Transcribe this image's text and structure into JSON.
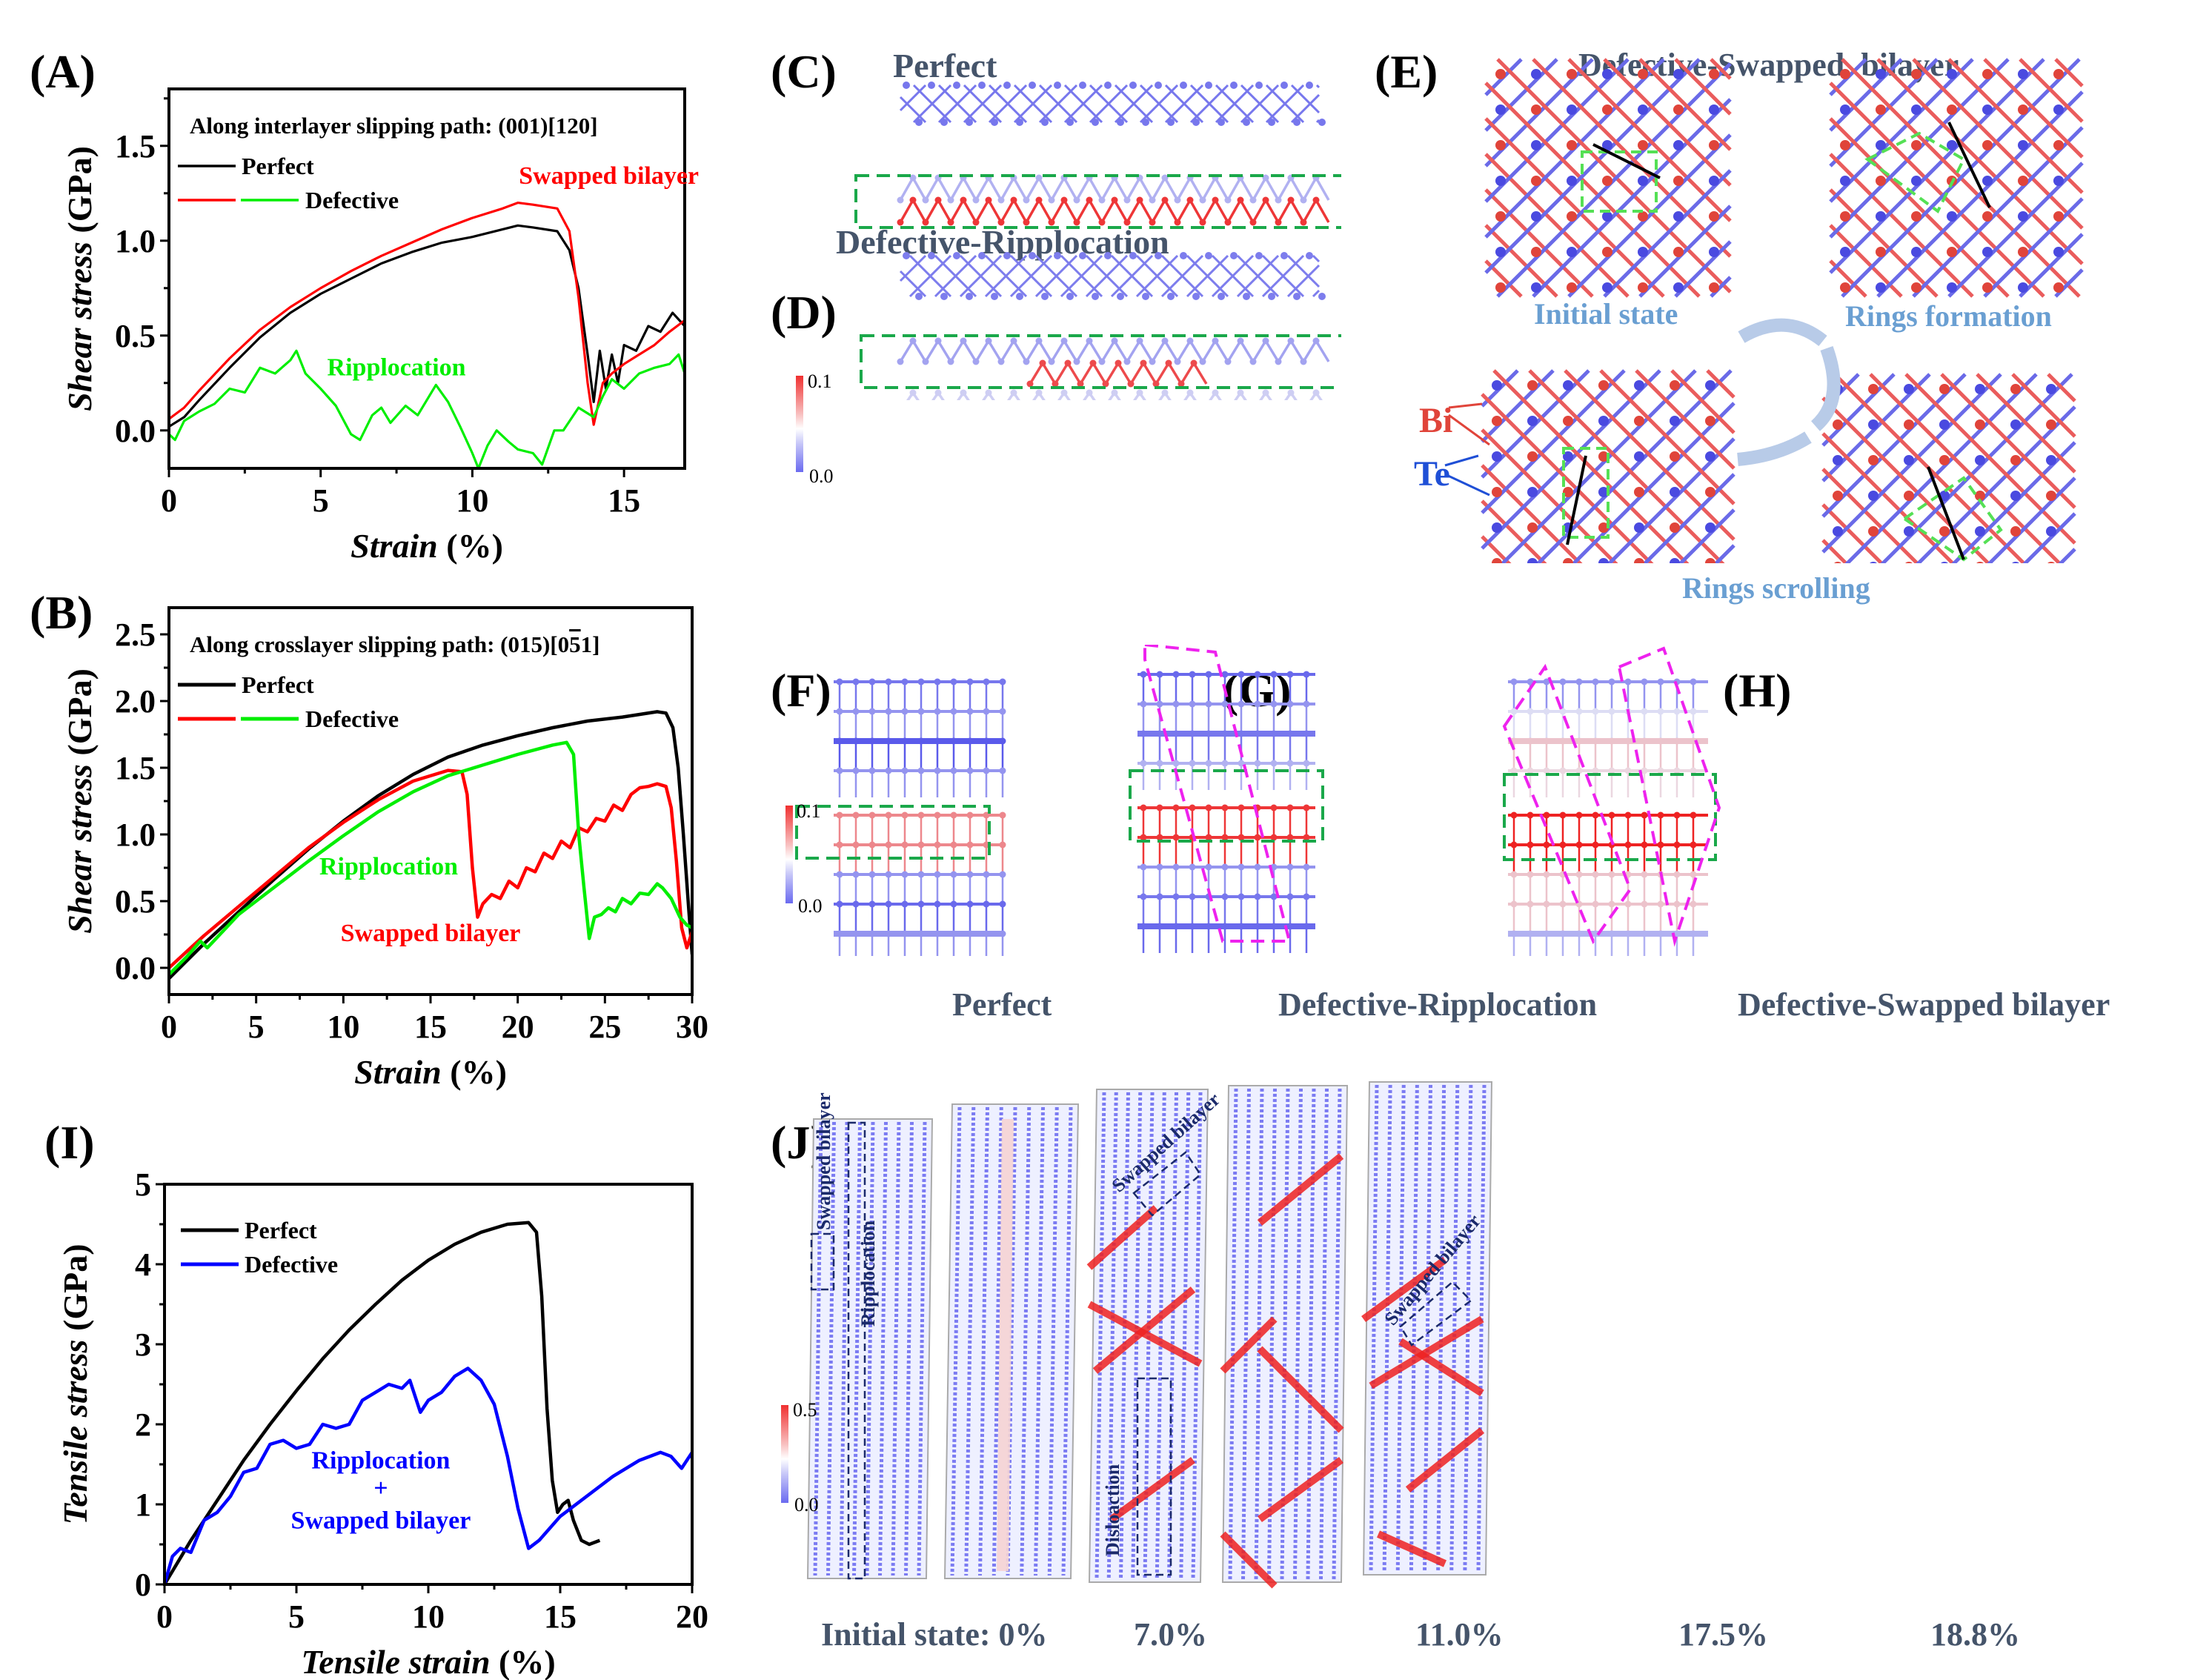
{
  "panel_labels": {
    "A": "(A)",
    "B": "(B)",
    "C": "(C)",
    "D": "(D)",
    "E": "(E)",
    "F": "(F)",
    "G": "(G)",
    "H": "(H)",
    "I": "(I)",
    "J": "(J)"
  },
  "chart_data": [
    {
      "id": "A",
      "type": "line",
      "title": "Along interlayer slipping path: (001)[120]",
      "xlabel": "Strain",
      "xlabel_unit": " (%)",
      "ylabel": "Shear stress",
      "ylabel_unit": " (GPa)",
      "xlim": [
        0,
        17
      ],
      "ylim": [
        -0.2,
        1.8
      ],
      "xticks": [
        0,
        5,
        10,
        15
      ],
      "yticks": [
        0.0,
        0.5,
        1.0,
        1.5
      ],
      "ytick_format": 1,
      "grid": false,
      "legend": {
        "position": "top-left",
        "entries": [
          {
            "label": "Perfect",
            "colors": [
              "#000000"
            ]
          },
          {
            "label": "Defective",
            "colors": [
              "#ff0000",
              "#00ee00"
            ]
          }
        ]
      },
      "annotations": [
        {
          "text": "Swapped bilayer",
          "color": "#ff0000",
          "x": 14.5,
          "y": 1.3
        },
        {
          "text": "Ripplocation",
          "color": "#00ee00",
          "x": 7.5,
          "y": 0.29
        }
      ],
      "series": [
        {
          "name": "Perfect",
          "color": "#000000",
          "x": [
            0,
            0.5,
            1,
            2,
            3,
            4,
            5,
            6,
            7,
            8,
            9,
            10,
            11,
            11.5,
            12,
            12.8,
            13.2,
            13.5,
            13.8,
            14.0,
            14.2,
            14.4,
            14.6,
            14.8,
            15.0,
            15.4,
            15.8,
            16.2,
            16.6,
            17.0
          ],
          "y": [
            0.02,
            0.07,
            0.16,
            0.33,
            0.49,
            0.62,
            0.72,
            0.8,
            0.88,
            0.94,
            0.99,
            1.02,
            1.06,
            1.08,
            1.07,
            1.05,
            0.95,
            0.75,
            0.4,
            0.15,
            0.42,
            0.22,
            0.4,
            0.25,
            0.45,
            0.42,
            0.55,
            0.52,
            0.62,
            0.55
          ]
        },
        {
          "name": "Defective (Swapped bilayer)",
          "color": "#ff0000",
          "x": [
            0,
            0.5,
            1,
            2,
            3,
            4,
            5,
            6,
            7,
            8,
            9,
            10,
            11,
            11.5,
            12,
            12.8,
            13.2,
            13.5,
            13.8,
            14.0,
            14.3,
            14.6,
            15.0,
            15.5,
            16.0,
            16.5,
            17.0
          ],
          "y": [
            0.06,
            0.12,
            0.21,
            0.38,
            0.53,
            0.65,
            0.75,
            0.84,
            0.92,
            0.99,
            1.06,
            1.12,
            1.17,
            1.2,
            1.19,
            1.17,
            1.05,
            0.7,
            0.25,
            0.03,
            0.25,
            0.3,
            0.35,
            0.4,
            0.45,
            0.52,
            0.58
          ]
        },
        {
          "name": "Defective (Ripplocation)",
          "color": "#00ee00",
          "x": [
            0,
            0.2,
            0.5,
            1,
            1.5,
            2,
            2.5,
            3,
            3.5,
            4,
            4.2,
            4.5,
            5,
            5.5,
            6,
            6.3,
            6.7,
            7,
            7.3,
            7.8,
            8.2,
            8.8,
            9.2,
            9.6,
            10,
            10.2,
            10.5,
            10.8,
            11.2,
            11.5,
            12,
            12.3,
            12.7,
            13,
            13.5,
            14,
            14.3,
            14.6,
            15,
            15.5,
            16,
            16.5,
            16.8,
            17
          ],
          "y": [
            -0.02,
            -0.05,
            0.05,
            0.1,
            0.14,
            0.22,
            0.2,
            0.33,
            0.3,
            0.37,
            0.42,
            0.3,
            0.22,
            0.13,
            -0.02,
            -0.05,
            0.08,
            0.12,
            0.04,
            0.13,
            0.08,
            0.24,
            0.15,
            0.02,
            -0.12,
            -0.2,
            -0.08,
            0.0,
            -0.06,
            -0.1,
            -0.12,
            -0.18,
            0.0,
            0.0,
            0.12,
            0.07,
            0.18,
            0.27,
            0.22,
            0.3,
            0.33,
            0.35,
            0.4,
            0.3
          ]
        }
      ]
    },
    {
      "id": "B",
      "type": "line",
      "title": "Along crosslayer slipping path: (015)[0",
      "title_overbar": "5",
      "title_tail": "1]",
      "xlabel": "Strain",
      "xlabel_unit": " (%)",
      "ylabel": "Shear stress",
      "ylabel_unit": " (GPa)",
      "xlim": [
        0,
        30
      ],
      "ylim": [
        -0.2,
        2.7
      ],
      "xticks": [
        0,
        5,
        10,
        15,
        20,
        25,
        30
      ],
      "yticks": [
        0.0,
        0.5,
        1.0,
        1.5,
        2.0,
        2.5
      ],
      "ytick_format": 1,
      "grid": false,
      "legend": {
        "position": "top-left",
        "entries": [
          {
            "label": "Perfect",
            "colors": [
              "#000000"
            ]
          },
          {
            "label": "Defective",
            "colors": [
              "#ff0000",
              "#00ee00"
            ]
          }
        ]
      },
      "annotations": [
        {
          "text": "Ripplocation",
          "color": "#00ee00",
          "x": 12.6,
          "y": 0.7
        },
        {
          "text": "Swapped bilayer",
          "color": "#ff0000",
          "x": 15,
          "y": 0.2
        }
      ],
      "series": [
        {
          "name": "Perfect",
          "color": "#000000",
          "x": [
            0,
            1,
            2,
            4,
            6,
            8,
            10,
            12,
            14,
            16,
            18,
            20,
            22,
            24,
            26,
            28,
            28.5,
            28.9,
            29.2,
            29.5,
            29.8,
            30
          ],
          "y": [
            -0.08,
            0.05,
            0.18,
            0.42,
            0.66,
            0.89,
            1.1,
            1.29,
            1.45,
            1.58,
            1.67,
            1.74,
            1.8,
            1.85,
            1.88,
            1.92,
            1.91,
            1.8,
            1.5,
            1.0,
            0.45,
            0.1
          ]
        },
        {
          "name": "Defective (Swapped bilayer)",
          "color": "#ff0000",
          "x": [
            0,
            1,
            2,
            4,
            6,
            8,
            10,
            12,
            14,
            16,
            16.8,
            17.1,
            17.4,
            17.7,
            18,
            18.5,
            19,
            19.5,
            20,
            20.5,
            21,
            21.5,
            22,
            22.5,
            23,
            23.5,
            24,
            24.5,
            25,
            25.5,
            26,
            26.5,
            27,
            27.5,
            28,
            28.5,
            28.8,
            29.1,
            29.4,
            29.7,
            30
          ],
          "y": [
            0.0,
            0.12,
            0.24,
            0.46,
            0.68,
            0.9,
            1.09,
            1.26,
            1.4,
            1.48,
            1.47,
            1.3,
            0.75,
            0.38,
            0.48,
            0.55,
            0.52,
            0.65,
            0.6,
            0.75,
            0.72,
            0.86,
            0.82,
            0.95,
            0.9,
            1.05,
            1.02,
            1.12,
            1.1,
            1.22,
            1.18,
            1.3,
            1.35,
            1.36,
            1.38,
            1.36,
            1.2,
            0.8,
            0.3,
            0.15,
            0.27
          ]
        },
        {
          "name": "Defective (Ripplocation)",
          "color": "#00ee00",
          "x": [
            0,
            1,
            1.8,
            2.2,
            4,
            6,
            8,
            10,
            12,
            14,
            16,
            18,
            20,
            22,
            22.8,
            23.2,
            23.5,
            23.8,
            24.1,
            24.4,
            24.8,
            25.2,
            25.6,
            26,
            26.5,
            27,
            27.5,
            28,
            28.3,
            28.8,
            29.3,
            29.7,
            30
          ],
          "y": [
            -0.05,
            0.08,
            0.2,
            0.15,
            0.4,
            0.6,
            0.8,
            0.99,
            1.17,
            1.32,
            1.44,
            1.52,
            1.6,
            1.67,
            1.69,
            1.6,
            1.0,
            0.6,
            0.22,
            0.38,
            0.4,
            0.45,
            0.42,
            0.52,
            0.48,
            0.56,
            0.55,
            0.63,
            0.6,
            0.52,
            0.38,
            0.32,
            0.3
          ]
        }
      ]
    },
    {
      "id": "I",
      "type": "line",
      "title": "",
      "xlabel": "Tensile strain",
      "xlabel_unit": " (%)",
      "ylabel": "Tensile stress",
      "ylabel_unit": " (GPa)",
      "xlim": [
        0,
        20
      ],
      "ylim": [
        0,
        5
      ],
      "xticks": [
        0,
        5,
        10,
        15,
        20
      ],
      "yticks": [
        0,
        1,
        2,
        3,
        4,
        5
      ],
      "ytick_format": 0,
      "grid": false,
      "legend": {
        "position": "top-left",
        "entries": [
          {
            "label": "Perfect",
            "colors": [
              "#000000"
            ]
          },
          {
            "label": "Defective",
            "colors": [
              "#0000ff"
            ]
          }
        ]
      },
      "annotations": [
        {
          "text": "Ripplocation",
          "color": "#0000ff",
          "x": 8.2,
          "y": 1.45
        },
        {
          "text": "+",
          "color": "#0000ff",
          "x": 8.2,
          "y": 1.1
        },
        {
          "text": "Swapped bilayer",
          "color": "#0000ff",
          "x": 8.2,
          "y": 0.7
        }
      ],
      "series": [
        {
          "name": "Perfect",
          "color": "#000000",
          "x": [
            0,
            1,
            2,
            3,
            4,
            5,
            6,
            7,
            8,
            9,
            10,
            11,
            12,
            13,
            13.8,
            14.1,
            14.3,
            14.5,
            14.7,
            14.9,
            15.1,
            15.3,
            15.5,
            15.8,
            16.1,
            16.5
          ],
          "y": [
            0,
            0.55,
            1.05,
            1.55,
            2.0,
            2.42,
            2.82,
            3.18,
            3.5,
            3.8,
            4.05,
            4.25,
            4.4,
            4.5,
            4.52,
            4.4,
            3.6,
            2.2,
            1.3,
            0.9,
            1.0,
            1.05,
            0.8,
            0.55,
            0.5,
            0.55
          ]
        },
        {
          "name": "Defective",
          "color": "#0000ff",
          "x": [
            0,
            0.3,
            0.6,
            1,
            1.5,
            2,
            2.5,
            3,
            3.5,
            4,
            4.5,
            5,
            5.5,
            6,
            6.5,
            7,
            7.5,
            8,
            8.5,
            9,
            9.3,
            9.7,
            10,
            10.5,
            11,
            11.5,
            12,
            12.5,
            13,
            13.4,
            13.8,
            14.2,
            15,
            16,
            17,
            18,
            18.8,
            19.2,
            19.6,
            20
          ],
          "y": [
            0,
            0.35,
            0.45,
            0.4,
            0.8,
            0.9,
            1.1,
            1.4,
            1.45,
            1.75,
            1.8,
            1.7,
            1.75,
            2.0,
            1.95,
            2.0,
            2.3,
            2.4,
            2.5,
            2.45,
            2.55,
            2.15,
            2.3,
            2.4,
            2.6,
            2.7,
            2.55,
            2.25,
            1.6,
            0.95,
            0.45,
            0.55,
            0.85,
            1.1,
            1.35,
            1.55,
            1.65,
            1.6,
            1.45,
            1.65
          ]
        }
      ]
    }
  ],
  "panel_C": {
    "title": "Perfect"
  },
  "panel_D": {
    "title": "Defective-Ripplocation",
    "colorbar": {
      "max": "0.1",
      "min": "0.0"
    }
  },
  "panel_E": {
    "title": "Defective-Swapped  bilayer",
    "captions": {
      "initial": "Initial state",
      "rings_formation": "Rings formation",
      "rings_scrolling": "Rings scrolling"
    },
    "legend": {
      "bi": "Bi",
      "te": "Te"
    },
    "colors": {
      "bi": "#e0443a",
      "te": "#1f4fd6"
    }
  },
  "panel_FGH": {
    "colorbar": {
      "max": "0.1",
      "min": "0.0"
    },
    "captions": {
      "F": "Perfect",
      "G": "Defective-Ripplocation",
      "H": "Defective-Swapped bilayer"
    }
  },
  "panel_J": {
    "colorbar": {
      "max": "0.5",
      "min": "0.0"
    },
    "frames": [
      {
        "caption": "Initial state: 0%",
        "labels": [
          "Swapped bilayer",
          "Ripplocation"
        ]
      },
      {
        "caption": "7.0%",
        "labels": []
      },
      {
        "caption": "11.0%",
        "labels": [
          "Swapped bilayer",
          "Disloaction"
        ]
      },
      {
        "caption": "17.5%",
        "labels": []
      },
      {
        "caption": "18.8%",
        "labels": [
          "Swapped bilayer"
        ]
      }
    ]
  },
  "colors": {
    "slate_title": "#45546a",
    "caption_blue": "#6a9fd2",
    "box_green": "#1aa84a",
    "box_magenta": "#ee22ee",
    "box_navy": "#1b2a6b",
    "atom_blue": "#3a3ae0",
    "atom_red": "#ee2222"
  }
}
